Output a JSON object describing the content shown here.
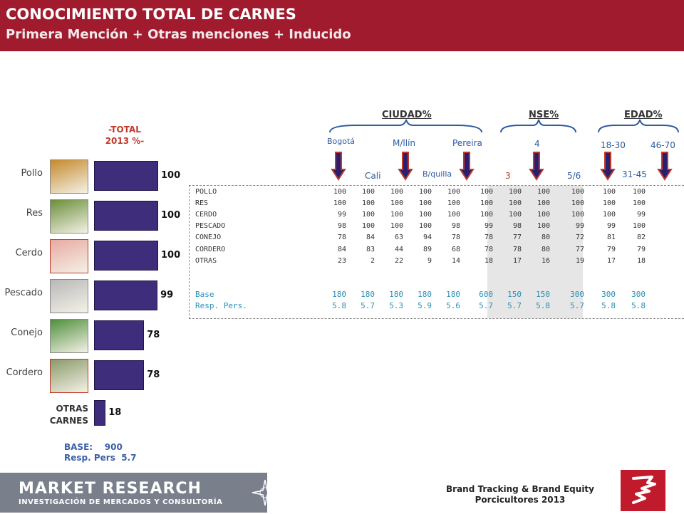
{
  "header": {
    "title": "CONOCIMIENTO TOTAL  DE CARNES",
    "subtitle": "Primera Mención  + Otras menciones + Inducido"
  },
  "total_label": "-TOTAL\n2013 %-",
  "animals": [
    {
      "label": "Pollo",
      "icon": "chick-icon"
    },
    {
      "label": "Res",
      "icon": "cow-icon"
    },
    {
      "label": "Cerdo",
      "icon": "pig-icon"
    },
    {
      "label": "Pescado",
      "icon": "fish-icon"
    },
    {
      "label": "Conejo",
      "icon": "rabbit-icon"
    },
    {
      "label": "Cordero",
      "icon": "sheep-icon"
    }
  ],
  "otras_carnes_label": "OTRAS\nCARNES",
  "base_note": {
    "line1": "BASE:    900",
    "line2": "Resp. Pers  5.7"
  },
  "groups": [
    {
      "label": "CIUDAD%"
    },
    {
      "label": "NSE%"
    },
    {
      "label": "EDAD%"
    }
  ],
  "column_labels": {
    "bogota": "Bogotá",
    "cali": "Cali",
    "medellin": "M/llín",
    "barranquilla": "B/quilla",
    "pereira": "Pereira",
    "nse3": "3",
    "nse4": "4",
    "nse56": "5/6",
    "age1830": "18-30",
    "age3145": "31-45",
    "age4670": "46-70"
  },
  "chart_data": [
    {
      "type": "bar",
      "title": "-TOTAL 2013 %-",
      "categories": [
        "Pollo",
        "Res",
        "Cerdo",
        "Pescado",
        "Conejo",
        "Cordero",
        "OTRAS CARNES"
      ],
      "values": [
        100,
        100,
        100,
        99,
        78,
        78,
        18
      ],
      "xlim": [
        0,
        100
      ]
    },
    {
      "type": "table",
      "columns": [
        "Bogotá",
        "Cali",
        "M/llín",
        "B/quilla",
        "Pereira",
        "3",
        "4",
        "5/6",
        "18-30",
        "31-45",
        "46-70"
      ],
      "rows": [
        {
          "label": "POLLO",
          "values": [
            "100",
            "100",
            "100",
            "100",
            "100",
            "100",
            "100",
            "100",
            "100",
            "100",
            "100"
          ]
        },
        {
          "label": "RES",
          "values": [
            "100",
            "100",
            "100",
            "100",
            "100",
            "100",
            "100",
            "100",
            "100",
            "100",
            "100"
          ]
        },
        {
          "label": "CERDO",
          "values": [
            "99",
            "100",
            "100",
            "100",
            "100",
            "100",
            "100",
            "100",
            "100",
            "100",
            "99"
          ]
        },
        {
          "label": "PESCADO",
          "values": [
            "98",
            "100",
            "100",
            "100",
            "98",
            "99",
            "98",
            "100",
            "99",
            "99",
            "100"
          ]
        },
        {
          "label": "CONEJO",
          "values": [
            "78",
            "84",
            "63",
            "94",
            "78",
            "78",
            "77",
            "80",
            "72",
            "81",
            "82"
          ]
        },
        {
          "label": "CORDERO",
          "values": [
            "84",
            "83",
            "44",
            "89",
            "68",
            "78",
            "78",
            "80",
            "77",
            "79",
            "79"
          ]
        },
        {
          "label": "OTRAS",
          "values": [
            "23",
            "2",
            "22",
            "9",
            "14",
            "18",
            "17",
            "16",
            "19",
            "17",
            "18"
          ]
        }
      ],
      "base_rows": [
        {
          "label": "Base",
          "values": [
            "180",
            "180",
            "180",
            "180",
            "180",
            "600",
            "150",
            "150",
            "300",
            "300",
            "300"
          ]
        },
        {
          "label": "Resp. Pers.",
          "values": [
            "5.8",
            "5.7",
            "5.3",
            "5.9",
            "5.6",
            "5.7",
            "5.7",
            "5.8",
            "5.7",
            "5.8",
            "5.8"
          ]
        }
      ]
    }
  ],
  "footer": {
    "brand": "MARKET RESEARCH",
    "brand_sub": "INVESTIGACIÓN DE MERCADOS Y CONSULTORÍA",
    "study_line1": "Brand Tracking & Brand Equity",
    "study_line2": "Porcicultores 2013"
  },
  "colors": {
    "header": "#a01b2e",
    "bar": "#3d2d7a",
    "arrow": "#2a1f6e",
    "arrow_stroke": "#c0392b",
    "base_text": "#2a8fb8"
  }
}
